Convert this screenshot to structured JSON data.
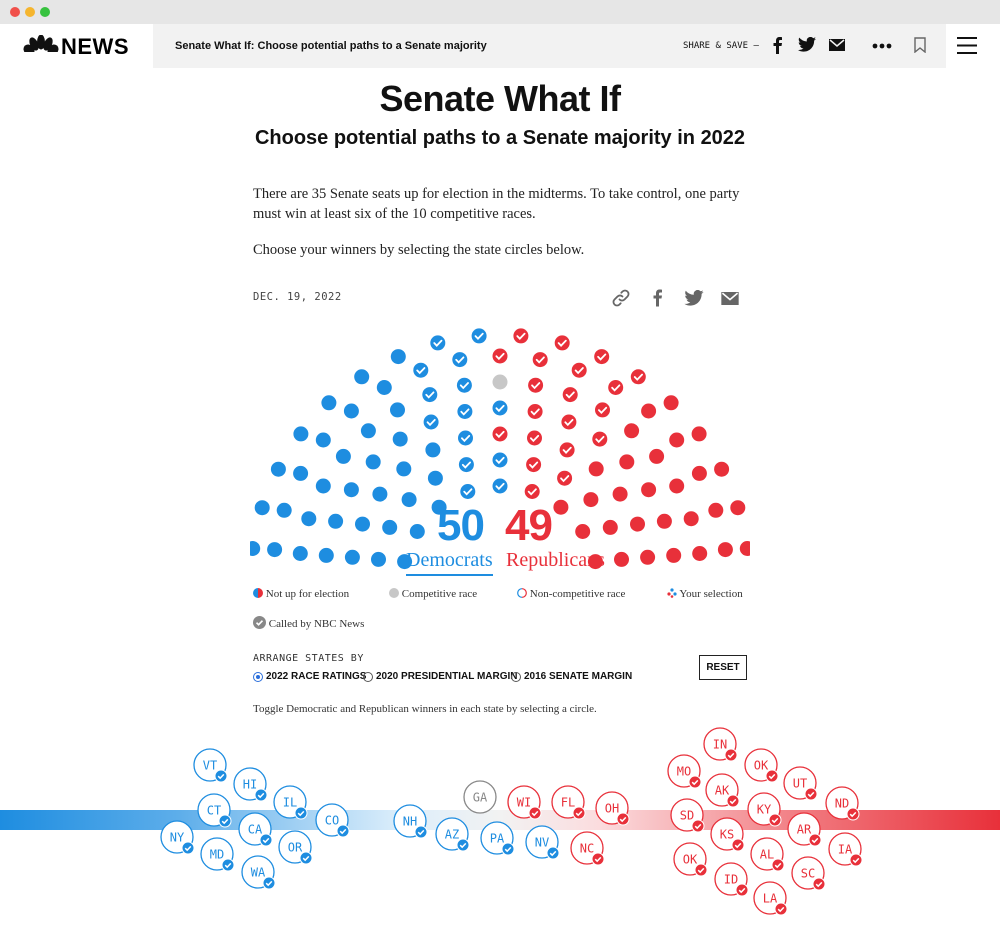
{
  "nav": {
    "brand": "NEWS",
    "title": "Senate What If: Choose potential paths to a Senate majority",
    "share_save": "SHARE & SAVE –"
  },
  "article": {
    "headline": "Senate What If",
    "subhead": "Choose potential paths to a Senate majority in 2022",
    "para1": "There are 35 Senate seats up for election in the midterms. To take control, one party must win at least six of the 10 competitive races.",
    "para2": "Choose your winners by selecting the state circles below.",
    "date": "DEC. 19, 2022"
  },
  "tally": {
    "dem_count": "50",
    "dem_label": "Democrats",
    "rep_count": "49",
    "rep_label": "Republicans"
  },
  "hemicycle": {
    "dem_not_up": 36,
    "dem_called": 14,
    "competitive": 1,
    "rep_called": 20,
    "rep_not_up": 29
  },
  "legend": {
    "not_up": "Not up for election",
    "competitive": "Competitive race",
    "noncompetitive": "Non-competitive race",
    "selection": "Your selection",
    "called": "Called by NBC News"
  },
  "arrange": {
    "title": "ARRANGE STATES BY",
    "options": [
      "2022 RACE RATINGS",
      "2020 PRESIDENTIAL MARGIN",
      "2016 SENATE MARGIN"
    ],
    "selected": 0,
    "reset": "RESET",
    "toggle_note": "Toggle Democratic and Republican winners in each state by selecting a circle."
  },
  "states": {
    "democratic": [
      "VT",
      "HI",
      "CT",
      "IL",
      "CO",
      "NY",
      "CA",
      "MD",
      "OR",
      "WA",
      "NH",
      "AZ",
      "PA",
      "NV"
    ],
    "tossup": [
      "GA"
    ],
    "republican": [
      "WI",
      "FL",
      "OH",
      "NC",
      "IN",
      "MO",
      "OK",
      "AK",
      "UT",
      "KY",
      "SD",
      "ND",
      "KS",
      "AR",
      "OK",
      "AL",
      "IA",
      "ID",
      "SC",
      "LA"
    ]
  },
  "colors": {
    "dem": "#1e8de0",
    "rep": "#e8303a",
    "grey": "#c7c7c7"
  }
}
